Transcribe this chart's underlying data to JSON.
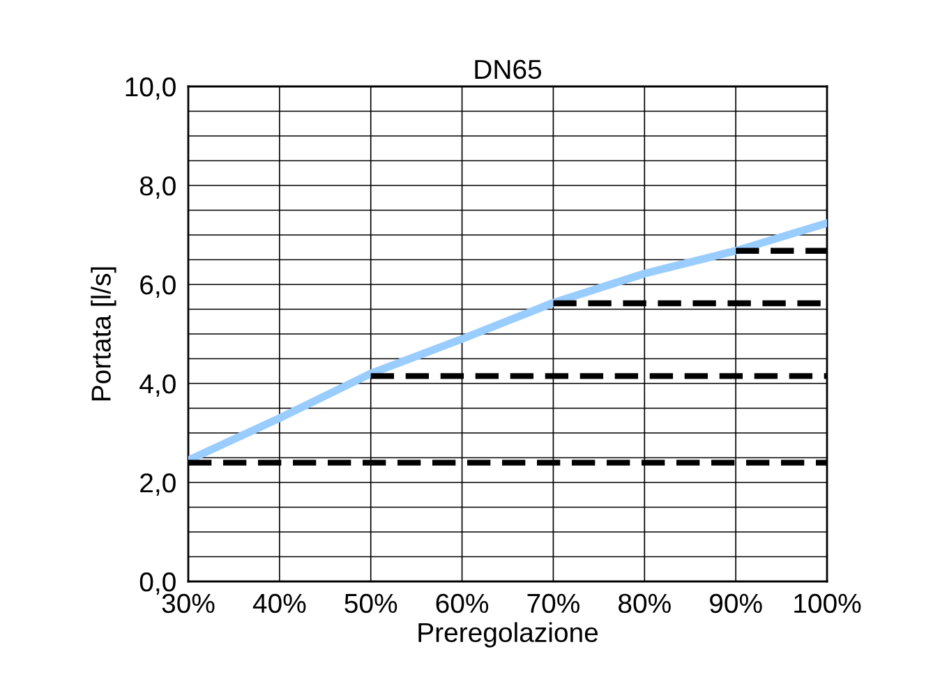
{
  "chart_data": {
    "type": "line",
    "title": "DN65",
    "xlabel": "Preregolazione",
    "ylabel": "Portata [l/s]",
    "xlim": [
      30,
      100
    ],
    "xticks": [
      {
        "value": 30,
        "label": "30%"
      },
      {
        "value": 40,
        "label": "40%"
      },
      {
        "value": 50,
        "label": "50%"
      },
      {
        "value": 60,
        "label": "60%"
      },
      {
        "value": 70,
        "label": "70%"
      },
      {
        "value": 80,
        "label": "80%"
      },
      {
        "value": 90,
        "label": "90%"
      },
      {
        "value": 100,
        "label": "100%"
      }
    ],
    "ylim": [
      0,
      10
    ],
    "yticks": [
      {
        "value": 0,
        "label": "0,0"
      },
      {
        "value": 0.5,
        "label": null
      },
      {
        "value": 1,
        "label": null
      },
      {
        "value": 1.5,
        "label": null
      },
      {
        "value": 2,
        "label": "2,0"
      },
      {
        "value": 2.5,
        "label": null
      },
      {
        "value": 3,
        "label": null
      },
      {
        "value": 3.5,
        "label": null
      },
      {
        "value": 4,
        "label": "4,0"
      },
      {
        "value": 4.5,
        "label": null
      },
      {
        "value": 5,
        "label": null
      },
      {
        "value": 5.5,
        "label": null
      },
      {
        "value": 6,
        "label": "6,0"
      },
      {
        "value": 6.5,
        "label": null
      },
      {
        "value": 7,
        "label": null
      },
      {
        "value": 7.5,
        "label": null
      },
      {
        "value": 8,
        "label": "8,0"
      },
      {
        "value": 8.5,
        "label": null
      },
      {
        "value": 9,
        "label": null
      },
      {
        "value": 9.5,
        "label": null
      },
      {
        "value": 10,
        "label": "10,0"
      }
    ],
    "grid": true,
    "marker": "none",
    "series": [
      {
        "color": "#99ccff",
        "line_style": "solid",
        "x": [
          30,
          40,
          50,
          60,
          70,
          80,
          90,
          100
        ],
        "values": [
          2.45,
          3.3,
          4.2,
          4.9,
          5.63,
          6.22,
          6.68,
          7.24
        ]
      },
      {
        "color": "#000000",
        "line_style": "dashed",
        "x": [
          30,
          100
        ],
        "values": [
          2.4,
          2.4
        ]
      },
      {
        "color": "#000000",
        "line_style": "dashed",
        "x": [
          50,
          100
        ],
        "values": [
          4.15,
          4.15
        ]
      },
      {
        "color": "#000000",
        "line_style": "dashed",
        "x": [
          70,
          100
        ],
        "values": [
          5.62,
          5.62
        ]
      },
      {
        "color": "#000000",
        "line_style": "dashed",
        "x": [
          90,
          100
        ],
        "values": [
          6.68,
          6.68
        ]
      }
    ]
  }
}
